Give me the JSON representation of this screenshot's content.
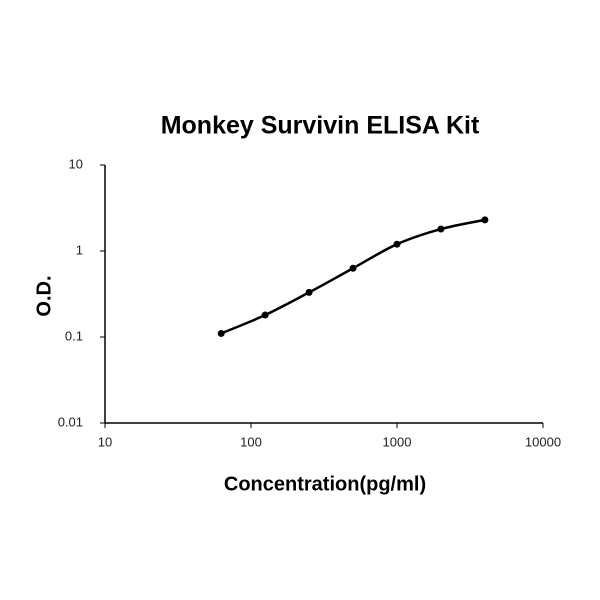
{
  "chart_data": {
    "type": "line",
    "title": "Monkey Survivin ELISA Kit",
    "x_label": "Concentration(pg/ml)",
    "y_label": "O.D.",
    "x": [
      62.5,
      125,
      250,
      500,
      1000,
      2000,
      4000
    ],
    "values": [
      0.11,
      0.18,
      0.33,
      0.63,
      1.2,
      1.8,
      2.3
    ],
    "color": "#000000",
    "markers": true,
    "xscale": "log",
    "yscale": "log",
    "xlim": [
      10,
      10000
    ],
    "ylim": [
      0.01,
      10
    ],
    "xticks": [
      10,
      100,
      1000,
      10000
    ],
    "yticks": [
      0.01,
      0.1,
      1,
      10
    ]
  }
}
